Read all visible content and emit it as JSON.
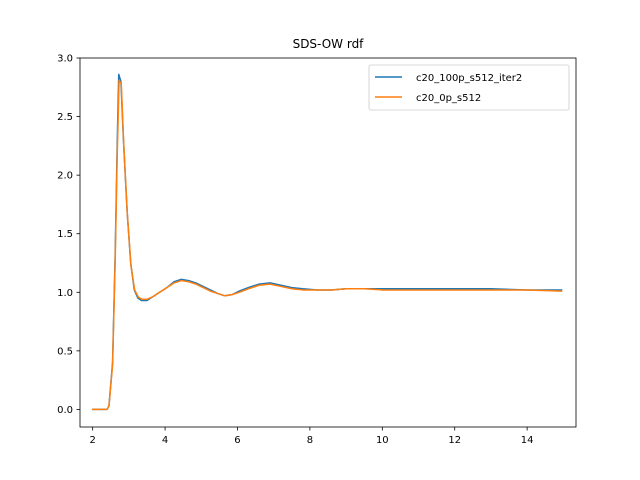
{
  "chart_data": {
    "type": "line",
    "title": "SDS-OW rdf",
    "xlabel": "",
    "ylabel": "",
    "xlim": [
      1.65,
      15.35
    ],
    "ylim": [
      -0.15,
      3.0
    ],
    "xticks": [
      2,
      4,
      6,
      8,
      10,
      12,
      14
    ],
    "xtick_labels": [
      "2",
      "4",
      "6",
      "8",
      "10",
      "12",
      "14"
    ],
    "yticks": [
      0.0,
      0.5,
      1.0,
      1.5,
      2.0,
      2.5,
      3.0
    ],
    "ytick_labels": [
      "0.0",
      "0.5",
      "1.0",
      "1.5",
      "2.0",
      "2.5",
      "3.0"
    ],
    "grid": false,
    "legend_position": "top-right",
    "series": [
      {
        "name": "c20_100p_s512_iter2",
        "color": "#1f77b4",
        "points": [
          [
            2.0,
            0.0
          ],
          [
            2.3,
            0.0
          ],
          [
            2.4,
            0.0
          ],
          [
            2.45,
            0.03
          ],
          [
            2.55,
            0.4
          ],
          [
            2.62,
            1.3
          ],
          [
            2.68,
            2.3
          ],
          [
            2.72,
            2.86
          ],
          [
            2.78,
            2.8
          ],
          [
            2.85,
            2.3
          ],
          [
            2.95,
            1.7
          ],
          [
            3.05,
            1.25
          ],
          [
            3.15,
            1.02
          ],
          [
            3.25,
            0.95
          ],
          [
            3.35,
            0.93
          ],
          [
            3.5,
            0.93
          ],
          [
            3.65,
            0.96
          ],
          [
            3.85,
            1.0
          ],
          [
            4.05,
            1.04
          ],
          [
            4.25,
            1.09
          ],
          [
            4.45,
            1.11
          ],
          [
            4.65,
            1.1
          ],
          [
            4.85,
            1.08
          ],
          [
            5.05,
            1.05
          ],
          [
            5.25,
            1.02
          ],
          [
            5.45,
            0.99
          ],
          [
            5.65,
            0.97
          ],
          [
            5.85,
            0.98
          ],
          [
            6.05,
            1.01
          ],
          [
            6.3,
            1.04
          ],
          [
            6.6,
            1.07
          ],
          [
            6.9,
            1.08
          ],
          [
            7.2,
            1.06
          ],
          [
            7.5,
            1.04
          ],
          [
            7.8,
            1.03
          ],
          [
            8.2,
            1.02
          ],
          [
            8.6,
            1.02
          ],
          [
            9.0,
            1.03
          ],
          [
            9.5,
            1.03
          ],
          [
            10.0,
            1.03
          ],
          [
            11.0,
            1.03
          ],
          [
            12.0,
            1.03
          ],
          [
            13.0,
            1.03
          ],
          [
            14.0,
            1.02
          ],
          [
            14.95,
            1.02
          ]
        ]
      },
      {
        "name": "c20_0p_s512",
        "color": "#ff7f0e",
        "points": [
          [
            2.0,
            0.0
          ],
          [
            2.3,
            0.0
          ],
          [
            2.4,
            0.0
          ],
          [
            2.45,
            0.03
          ],
          [
            2.55,
            0.38
          ],
          [
            2.62,
            1.25
          ],
          [
            2.68,
            2.2
          ],
          [
            2.73,
            2.81
          ],
          [
            2.79,
            2.78
          ],
          [
            2.86,
            2.25
          ],
          [
            2.96,
            1.65
          ],
          [
            3.06,
            1.22
          ],
          [
            3.16,
            1.02
          ],
          [
            3.26,
            0.96
          ],
          [
            3.36,
            0.94
          ],
          [
            3.5,
            0.94
          ],
          [
            3.65,
            0.96
          ],
          [
            3.85,
            1.0
          ],
          [
            4.05,
            1.04
          ],
          [
            4.25,
            1.08
          ],
          [
            4.45,
            1.1
          ],
          [
            4.65,
            1.09
          ],
          [
            4.85,
            1.07
          ],
          [
            5.05,
            1.04
          ],
          [
            5.25,
            1.01
          ],
          [
            5.45,
            0.99
          ],
          [
            5.65,
            0.97
          ],
          [
            5.85,
            0.98
          ],
          [
            6.05,
            1.0
          ],
          [
            6.3,
            1.03
          ],
          [
            6.6,
            1.06
          ],
          [
            6.9,
            1.07
          ],
          [
            7.2,
            1.05
          ],
          [
            7.5,
            1.03
          ],
          [
            7.8,
            1.02
          ],
          [
            8.2,
            1.02
          ],
          [
            8.6,
            1.02
          ],
          [
            9.0,
            1.03
          ],
          [
            9.5,
            1.03
          ],
          [
            10.0,
            1.02
          ],
          [
            11.0,
            1.02
          ],
          [
            12.0,
            1.02
          ],
          [
            13.0,
            1.02
          ],
          [
            14.0,
            1.02
          ],
          [
            14.95,
            1.01
          ]
        ]
      }
    ]
  }
}
